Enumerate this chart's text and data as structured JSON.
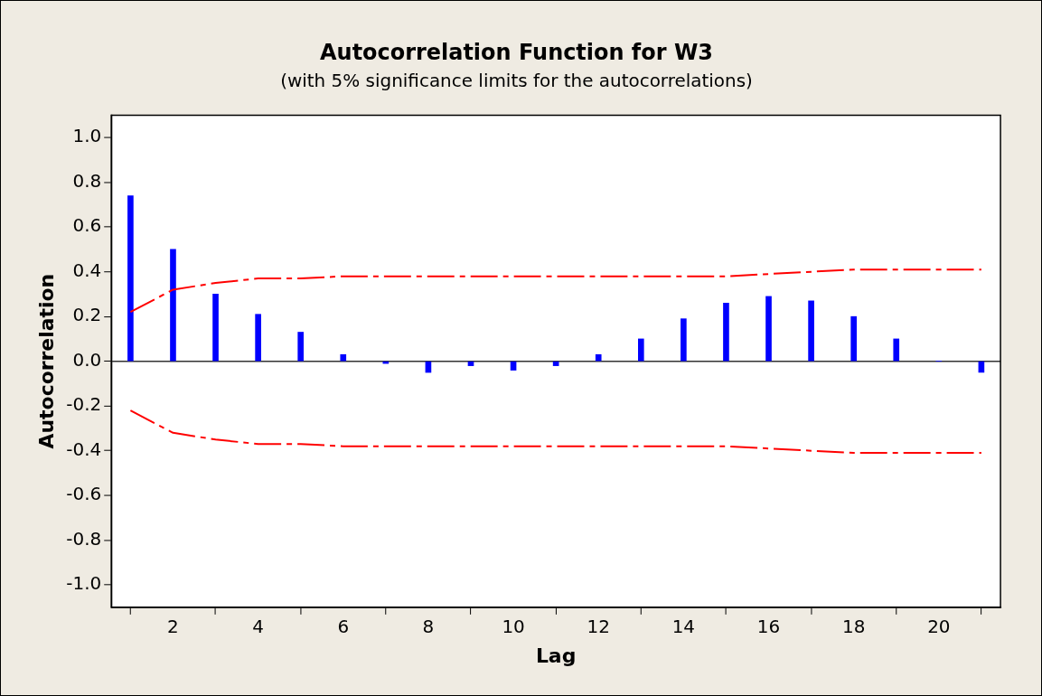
{
  "chart_data": {
    "type": "bar",
    "title": "Autocorrelation Function for W3",
    "subtitle": "(with 5% significance limits for the autocorrelations)",
    "xlabel": "Lag",
    "ylabel": "Autocorrelation",
    "x": [
      1,
      2,
      3,
      4,
      5,
      6,
      7,
      8,
      9,
      10,
      11,
      12,
      13,
      14,
      15,
      16,
      17,
      18,
      19,
      20,
      21
    ],
    "series": [
      {
        "color": "#0000ff",
        "values": [
          0.74,
          0.5,
          0.3,
          0.21,
          0.13,
          0.03,
          -0.01,
          -0.05,
          -0.02,
          -0.04,
          -0.02,
          0.03,
          0.1,
          0.19,
          0.26,
          0.29,
          0.27,
          0.2,
          0.1,
          0.0,
          -0.05
        ]
      },
      {
        "type": "line",
        "color": "#ff0000",
        "line_style": "dashed",
        "values": [
          0.22,
          0.32,
          0.35,
          0.37,
          0.37,
          0.38,
          0.38,
          0.38,
          0.38,
          0.38,
          0.38,
          0.38,
          0.38,
          0.38,
          0.38,
          0.39,
          0.4,
          0.41,
          0.41,
          0.41,
          0.41
        ]
      },
      {
        "type": "line",
        "color": "#ff0000",
        "line_style": "dashed",
        "values": [
          -0.22,
          -0.32,
          -0.35,
          -0.37,
          -0.37,
          -0.38,
          -0.38,
          -0.38,
          -0.38,
          -0.38,
          -0.38,
          -0.38,
          -0.38,
          -0.38,
          -0.38,
          -0.39,
          -0.4,
          -0.41,
          -0.41,
          -0.41,
          -0.41
        ]
      }
    ],
    "ref_lines": [
      {
        "axis": "y",
        "value": 0,
        "color": "#333333"
      }
    ],
    "xlim": [
      0.55,
      21.45
    ],
    "xticks": [
      2,
      4,
      6,
      8,
      10,
      12,
      14,
      16,
      18,
      20
    ],
    "ylim": [
      -1.1,
      1.1
    ],
    "yticks": [
      {
        "value": -1,
        "label": "-1.0"
      },
      {
        "value": -0.8,
        "label": "-0.8"
      },
      {
        "value": -0.6,
        "label": "-0.6"
      },
      {
        "value": -0.4,
        "label": "-0.4"
      },
      {
        "value": -0.2,
        "label": "-0.2"
      },
      {
        "value": 0,
        "label": "0.0"
      },
      {
        "value": 0.2,
        "label": "0.2"
      },
      {
        "value": 0.4,
        "label": "0.4"
      },
      {
        "value": 0.6,
        "label": "0.6"
      },
      {
        "value": 0.8,
        "label": "0.8"
      },
      {
        "value": 1,
        "label": "1.0"
      }
    ],
    "grid": false,
    "legend": false,
    "marker": "none"
  }
}
